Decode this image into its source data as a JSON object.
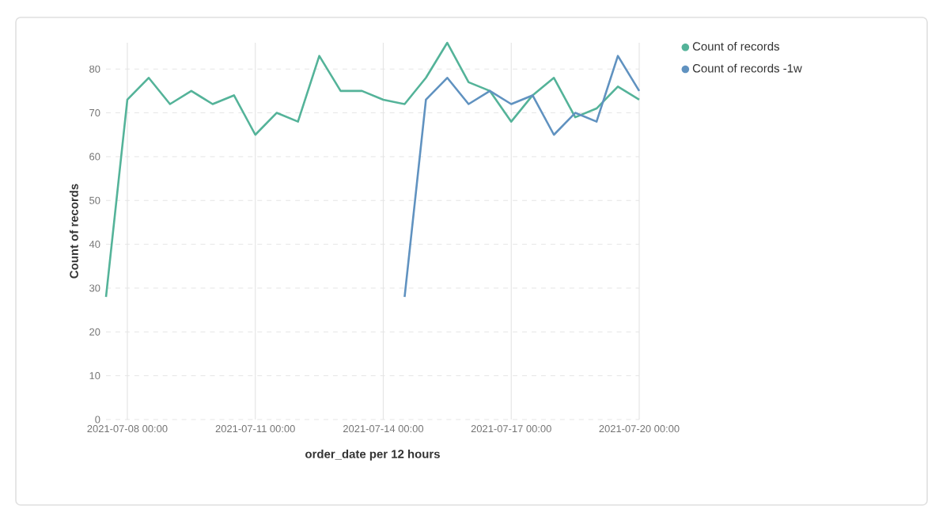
{
  "chart_data": {
    "type": "line",
    "xlabel": "order_date per 12 hours",
    "ylabel": "Count of records",
    "xlim": [
      "2021-07-07T12:00",
      "2021-07-20T00:00"
    ],
    "ylim": [
      0,
      86
    ],
    "xticks": [
      {
        "value": "2021-07-08T00:00",
        "label": "2021-07-08 00:00"
      },
      {
        "value": "2021-07-11T00:00",
        "label": "2021-07-11 00:00"
      },
      {
        "value": "2021-07-14T00:00",
        "label": "2021-07-14 00:00"
      },
      {
        "value": "2021-07-17T00:00",
        "label": "2021-07-17 00:00"
      },
      {
        "value": "2021-07-20T00:00",
        "label": "2021-07-20 00:00"
      }
    ],
    "yticks": [
      0,
      10,
      20,
      30,
      40,
      50,
      60,
      70,
      80
    ],
    "grid": true,
    "legend": "top right",
    "series": [
      {
        "name": "Count of records",
        "color": "#54b399",
        "x": [
          "2021-07-07T12:00",
          "2021-07-08T00:00",
          "2021-07-08T12:00",
          "2021-07-09T00:00",
          "2021-07-09T12:00",
          "2021-07-10T00:00",
          "2021-07-10T12:00",
          "2021-07-11T00:00",
          "2021-07-11T12:00",
          "2021-07-12T00:00",
          "2021-07-12T12:00",
          "2021-07-13T00:00",
          "2021-07-13T12:00",
          "2021-07-14T00:00",
          "2021-07-14T12:00",
          "2021-07-15T00:00",
          "2021-07-15T12:00",
          "2021-07-16T00:00",
          "2021-07-16T12:00",
          "2021-07-17T00:00",
          "2021-07-17T12:00",
          "2021-07-18T00:00",
          "2021-07-18T12:00",
          "2021-07-19T00:00",
          "2021-07-19T12:00",
          "2021-07-20T00:00"
        ],
        "values": [
          28,
          73,
          78,
          72,
          75,
          72,
          74,
          65,
          70,
          68,
          83,
          75,
          75,
          73,
          72,
          78,
          86,
          77,
          75,
          68,
          74,
          78,
          69,
          71,
          76,
          73
        ]
      },
      {
        "name": "Count of records -1w",
        "color": "#6092c0",
        "x": [
          "2021-07-14T12:00",
          "2021-07-15T00:00",
          "2021-07-15T12:00",
          "2021-07-16T00:00",
          "2021-07-16T12:00",
          "2021-07-17T00:00",
          "2021-07-17T12:00",
          "2021-07-18T00:00",
          "2021-07-18T12:00",
          "2021-07-19T00:00",
          "2021-07-19T12:00",
          "2021-07-20T00:00"
        ],
        "values": [
          28,
          73,
          78,
          72,
          75,
          72,
          74,
          65,
          70,
          68,
          83,
          75
        ]
      }
    ]
  }
}
